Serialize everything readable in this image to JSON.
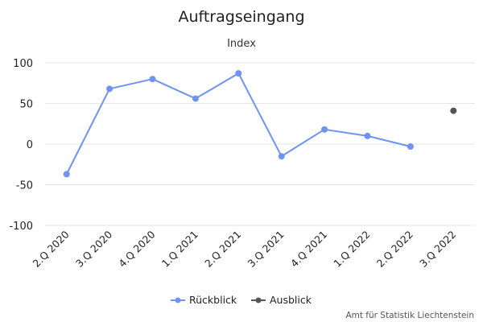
{
  "chart_data": {
    "type": "line",
    "title": "Auftragseingang",
    "subtitle": "Index",
    "categories": [
      "2.Q 2020",
      "3.Q 2020",
      "4.Q 2020",
      "1.Q 2021",
      "2.Q 2021",
      "3.Q 2021",
      "4.Q 2021",
      "1.Q 2022",
      "2.Q 2022",
      "3.Q 2022"
    ],
    "ylim": [
      -100,
      100
    ],
    "yticks": [
      100,
      50,
      0,
      -50,
      -100
    ],
    "grid": true,
    "legend_position": "bottom-center",
    "series": [
      {
        "name": "Rückblick",
        "color": "#6e93f0",
        "values": [
          -37,
          68,
          80,
          56,
          87,
          -15,
          18,
          10,
          -3,
          null
        ]
      },
      {
        "name": "Ausblick",
        "color": "#555555",
        "values": [
          null,
          null,
          null,
          null,
          null,
          null,
          null,
          null,
          null,
          41
        ]
      }
    ]
  },
  "credits": "Amt für Statistik Liechtenstein"
}
